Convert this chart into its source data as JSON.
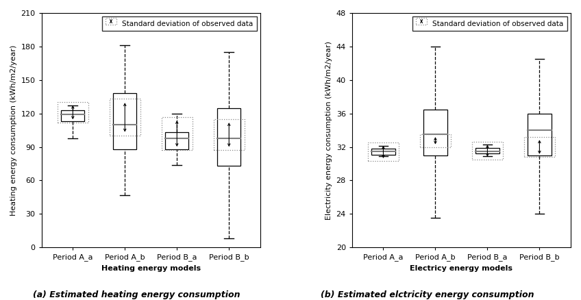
{
  "heating": {
    "categories": [
      "Period A_a",
      "Period A_b",
      "Period B_a",
      "Period B_b"
    ],
    "xlabel": "Heating energy models",
    "ylabel": "Heating energy consumption (kWh/m2/year)",
    "ylim": [
      0,
      210
    ],
    "yticks": [
      0,
      30,
      60,
      90,
      120,
      150,
      180,
      210
    ],
    "subtitle": "(a) Estimated heating energy consumption",
    "boxes": [
      {
        "whislo": 98,
        "q1": 113,
        "med": 119,
        "q3": 123,
        "whishi": 127,
        "dot_lo": 112,
        "dot_hi": 130
      },
      {
        "whislo": 47,
        "q1": 88,
        "med": 110,
        "q3": 138,
        "whishi": 181,
        "dot_lo": 100,
        "dot_hi": 133
      },
      {
        "whislo": 74,
        "q1": 88,
        "med": 98,
        "q3": 103,
        "whishi": 120,
        "dot_lo": 87,
        "dot_hi": 117
      },
      {
        "whislo": 8,
        "q1": 73,
        "med": 98,
        "q3": 125,
        "whishi": 175,
        "dot_lo": 87,
        "dot_hi": 115
      }
    ]
  },
  "electricity": {
    "categories": [
      "Period A_a",
      "Period A_b",
      "Period B_a",
      "Period B_b"
    ],
    "xlabel": "Electricy energy models",
    "ylabel": "Electricity energy consumption (kWh/m2/year)",
    "ylim": [
      20,
      48
    ],
    "yticks": [
      20,
      24,
      28,
      32,
      36,
      40,
      44,
      48
    ],
    "subtitle": "(b) Estimated elctricity energy consumption",
    "boxes": [
      {
        "whislo": 30.9,
        "q1": 31.1,
        "med": 31.5,
        "q3": 31.8,
        "whishi": 32.1,
        "dot_lo": 30.3,
        "dot_hi": 32.5
      },
      {
        "whislo": 23.5,
        "q1": 31.0,
        "med": 33.5,
        "q3": 36.5,
        "whishi": 44.0,
        "dot_lo": 32.0,
        "dot_hi": 33.5
      },
      {
        "whislo": 30.9,
        "q1": 31.2,
        "med": 31.5,
        "q3": 31.9,
        "whishi": 32.3,
        "dot_lo": 30.5,
        "dot_hi": 32.6
      },
      {
        "whislo": 24.0,
        "q1": 31.0,
        "med": 34.0,
        "q3": 36.0,
        "whishi": 42.5,
        "dot_lo": 30.8,
        "dot_hi": 33.2
      }
    ]
  },
  "legend_label": "Standard deviation of observed data",
  "background_color": "#ffffff",
  "title_fontsize": 9,
  "label_fontsize": 8,
  "tick_fontsize": 8
}
